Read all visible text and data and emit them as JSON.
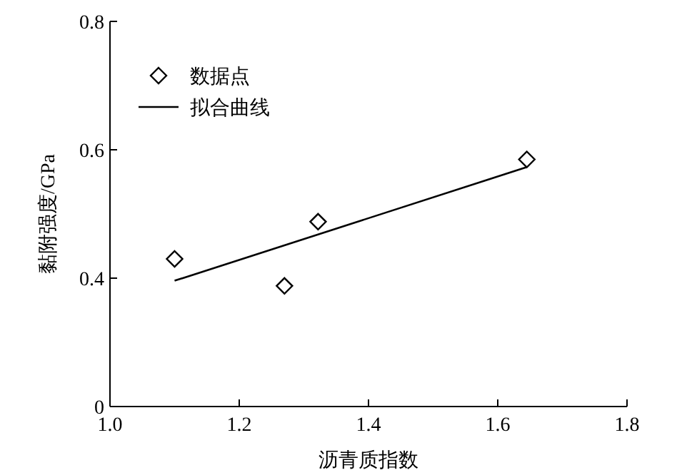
{
  "chart_data": {
    "type": "scatter",
    "xlabel": "沥青质指数",
    "ylabel": "黏附强度/GPa",
    "xlim": [
      1.0,
      1.8
    ],
    "xticks": [
      {
        "value": 1.0,
        "label": "1.0"
      },
      1.2,
      1.4,
      1.6,
      1.8
    ],
    "ylim": [
      0.2,
      0.8
    ],
    "yticks": [
      {
        "value": 0.2,
        "label": "0"
      },
      0.4,
      0.6,
      0.8
    ],
    "legend": "top left",
    "grid": false,
    "series": [
      {
        "name": "数据点",
        "marker": "diamond",
        "color": "#000000",
        "x": [
          1.1,
          1.27,
          1.322,
          1.645
        ],
        "values": [
          0.43,
          0.388,
          0.488,
          0.585
        ]
      },
      {
        "name": "拟合曲线",
        "type": "line",
        "marker": "none",
        "line_style": "solid",
        "color": "#000000",
        "x": [
          1.1,
          1.645
        ],
        "values": [
          0.396,
          0.573
        ]
      }
    ]
  }
}
